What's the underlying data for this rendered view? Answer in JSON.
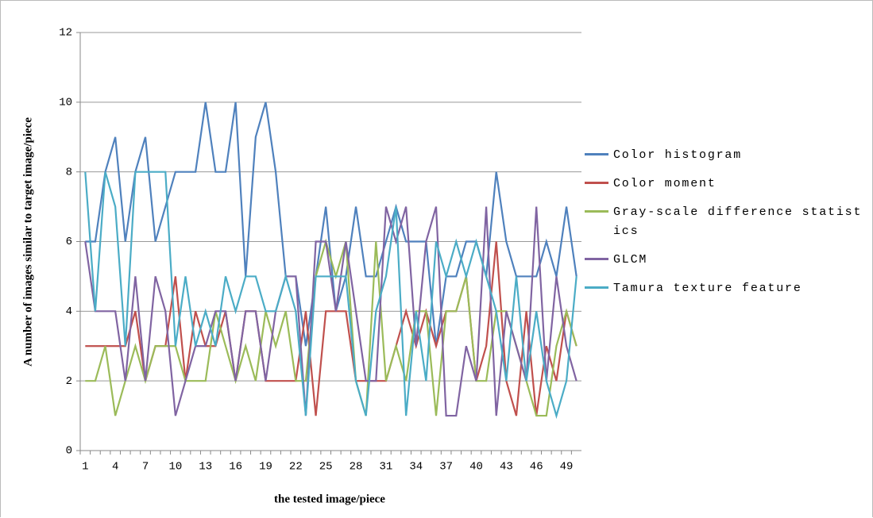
{
  "chart_data": {
    "type": "line",
    "y_label": "A number of images similar to target image/piece",
    "x_label": "the tested image/piece",
    "categories": [
      1,
      null,
      null,
      4,
      null,
      null,
      7,
      null,
      null,
      10,
      null,
      null,
      13,
      null,
      null,
      16,
      null,
      null,
      19,
      null,
      null,
      22,
      null,
      null,
      25,
      null,
      null,
      28,
      null,
      null,
      31,
      null,
      null,
      34,
      null,
      null,
      37,
      null,
      null,
      40,
      null,
      null,
      43,
      null,
      null,
      46,
      null,
      null,
      49,
      null
    ],
    "series": [
      {
        "name": "Color histogram",
        "color": "#4f81bd",
        "values": [
          6,
          6,
          8,
          9,
          6,
          8,
          9,
          6,
          7,
          8,
          8,
          8,
          10,
          8,
          8,
          10,
          5,
          9,
          10,
          8,
          5,
          5,
          3,
          5,
          7,
          4,
          5,
          7,
          5,
          5,
          6,
          7,
          6,
          6,
          6,
          3,
          5,
          5,
          6,
          6,
          5,
          8,
          6,
          5,
          5,
          5,
          6,
          5,
          7,
          5
        ]
      },
      {
        "name": "Color moment",
        "color": "#c0504d",
        "values": [
          3,
          3,
          3,
          3,
          3,
          4,
          2,
          3,
          3,
          5,
          2,
          4,
          3,
          3,
          4,
          2,
          4,
          4,
          2,
          2,
          2,
          2,
          4,
          1,
          4,
          4,
          4,
          2,
          2,
          2,
          2,
          3,
          4,
          3,
          4,
          3,
          4,
          4,
          5,
          2,
          3,
          6,
          2,
          1,
          4,
          1,
          3,
          2,
          4,
          3
        ]
      },
      {
        "name": "Gray-scale difference statistics",
        "color": "#9bbb59",
        "values": [
          2,
          2,
          3,
          1,
          2,
          3,
          2,
          3,
          3,
          3,
          2,
          2,
          2,
          4,
          3,
          2,
          3,
          2,
          4,
          3,
          4,
          2,
          2,
          5,
          6,
          5,
          6,
          2,
          1,
          6,
          2,
          3,
          2,
          4,
          4,
          1,
          4,
          4,
          5,
          2,
          2,
          4,
          4,
          3,
          2,
          1,
          1,
          3,
          4,
          3
        ]
      },
      {
        "name": "GLCM",
        "color": "#8064a2",
        "values": [
          6,
          4,
          4,
          4,
          2,
          5,
          2,
          5,
          4,
          1,
          2,
          3,
          3,
          4,
          4,
          2,
          4,
          4,
          2,
          4,
          5,
          5,
          1,
          6,
          6,
          4,
          6,
          4,
          2,
          2,
          7,
          6,
          7,
          3,
          6,
          7,
          1,
          1,
          3,
          2,
          7,
          1,
          4,
          3,
          2,
          7,
          2,
          5,
          3,
          2
        ]
      },
      {
        "name": "Tamura texture feature",
        "color": "#4bacc6",
        "values": [
          8,
          4,
          8,
          7,
          3,
          8,
          8,
          8,
          8,
          3,
          5,
          3,
          4,
          3,
          5,
          4,
          5,
          5,
          4,
          4,
          5,
          4,
          1,
          5,
          5,
          5,
          5,
          2,
          1,
          4,
          5,
          7,
          1,
          4,
          2,
          6,
          5,
          6,
          5,
          6,
          5,
          4,
          2,
          5,
          2,
          4,
          2,
          1,
          2,
          5
        ]
      }
    ],
    "ylim": [
      0,
      12
    ],
    "yticks": [
      0,
      2,
      4,
      6,
      8,
      10,
      12
    ],
    "grid": true
  }
}
